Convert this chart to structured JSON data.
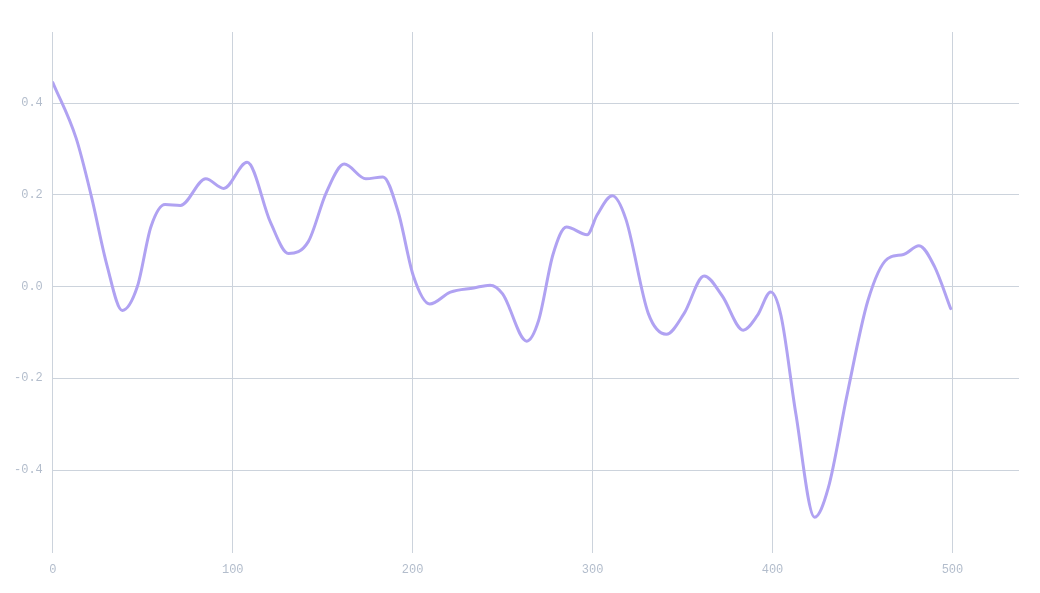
{
  "chart_data": {
    "type": "line",
    "grid": true,
    "marker": "none",
    "line_style": "solid",
    "xlim": [
      0,
      537
    ],
    "xticks": [
      0,
      100,
      200,
      300,
      400,
      500
    ],
    "ylim": [
      -0.58,
      0.555
    ],
    "yticks": [
      -0.4,
      -0.2,
      {
        "value": 0,
        "label": "0.0"
      },
      0.2,
      0.4
    ],
    "series": [
      {
        "color": "#b0a2f2",
        "x": [
          0,
          13,
          21.6,
          30,
          38.6,
          47,
          54.5,
          62.4,
          70.9,
          85,
          95,
          108,
          121,
          131,
          142,
          152,
          162,
          174,
          183.5,
          192,
          200.4,
          209.5,
          221,
          234,
          243,
          250,
          263.4,
          270,
          278,
          285.5,
          297,
          302.5,
          311,
          318.5,
          331,
          341,
          350.8,
          362,
          372,
          383.7,
          391.6,
          399,
          404.7,
          413,
          423.4,
          431,
          441.5,
          453,
          464,
          472.8,
          481.4,
          490,
          499
        ],
        "values": [
          0.445,
          0.323,
          0.194,
          0.048,
          -0.052,
          0.0,
          0.13,
          0.179,
          0.177,
          0.235,
          0.214,
          0.271,
          0.14,
          0.072,
          0.098,
          0.205,
          0.267,
          0.235,
          0.239,
          0.162,
          0.023,
          -0.038,
          -0.012,
          -0.003,
          0.003,
          -0.016,
          -0.119,
          -0.074,
          0.07,
          0.13,
          0.113,
          0.156,
          0.198,
          0.147,
          -0.059,
          -0.104,
          -0.059,
          0.023,
          -0.02,
          -0.095,
          -0.063,
          -0.012,
          -0.063,
          -0.278,
          -0.503,
          -0.439,
          -0.235,
          -0.031,
          0.061,
          0.07,
          0.089,
          0.044,
          -0.048
        ]
      }
    ]
  }
}
